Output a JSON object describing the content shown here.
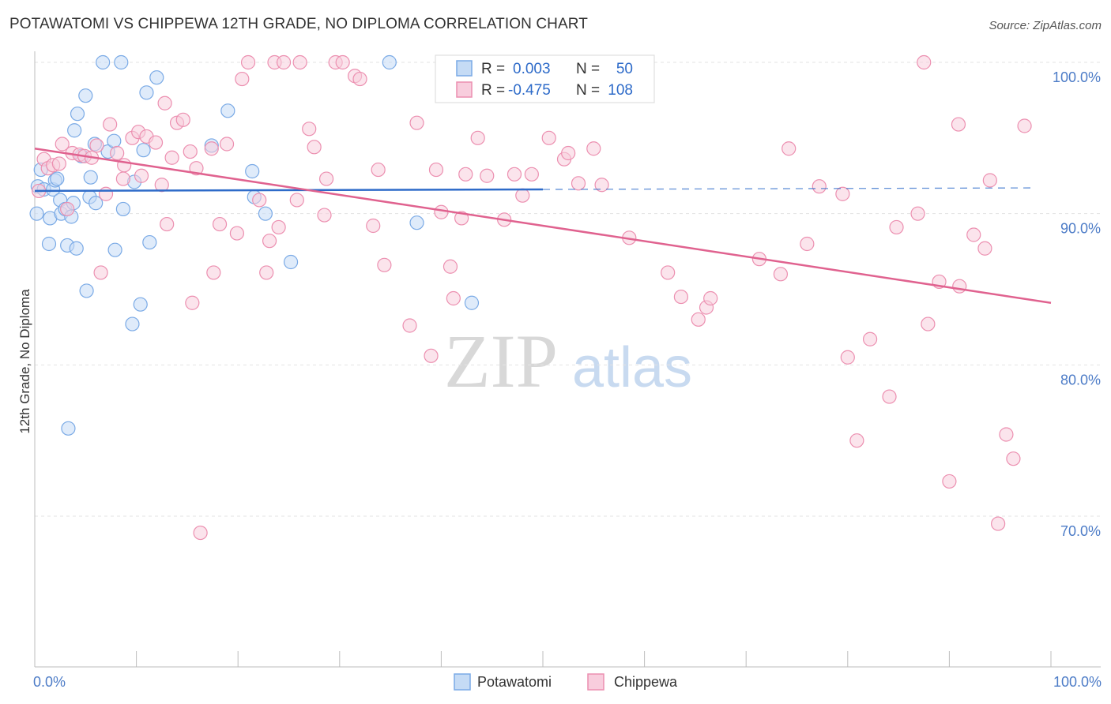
{
  "chart_data": {
    "type": "scatter",
    "title": "POTAWATOMI VS CHIPPEWA 12TH GRADE, NO DIPLOMA CORRELATION CHART",
    "source": "Source: ZipAtlas.com",
    "xlabel": "",
    "ylabel": "12th Grade, No Diploma",
    "xlim": [
      0,
      100
    ],
    "ylim": [
      60,
      101
    ],
    "y_ticks": [
      {
        "value": 100,
        "label": "100.0%"
      },
      {
        "value": 90,
        "label": "90.0%"
      },
      {
        "value": 80,
        "label": "80.0%"
      },
      {
        "value": 70,
        "label": "70.0%"
      }
    ],
    "x_tick_labels": {
      "left": "0.0%",
      "right": "100.0%"
    },
    "watermark": {
      "part1": "ZIP",
      "part2": "atlas"
    },
    "legend": {
      "rows": [
        {
          "r_label": "R =",
          "r_value": "0.003",
          "n_label": "N =",
          "n_value": "50"
        },
        {
          "r_label": "R =",
          "r_value": "-0.475",
          "n_label": "N =",
          "n_value": "108"
        }
      ]
    },
    "series": [
      {
        "name": "Potawatomi",
        "color": "#7aaae6",
        "fill": "#c5dbf5",
        "trend": {
          "x0": 0,
          "y0": 91.5,
          "x1": 50,
          "y1": 91.6,
          "dash_to": 98,
          "dash_y": 91.7,
          "color": "#2e6bc9"
        },
        "points": [
          [
            0.2,
            90.0
          ],
          [
            0.3,
            91.8
          ],
          [
            0.6,
            92.9
          ],
          [
            0.9,
            91.6
          ],
          [
            1.4,
            88.0
          ],
          [
            1.5,
            89.7
          ],
          [
            1.8,
            91.6
          ],
          [
            2.0,
            92.2
          ],
          [
            2.2,
            92.3
          ],
          [
            2.5,
            90.9
          ],
          [
            2.6,
            90.0
          ],
          [
            3.0,
            90.3
          ],
          [
            3.2,
            87.9
          ],
          [
            3.3,
            75.8
          ],
          [
            3.6,
            89.8
          ],
          [
            3.8,
            90.7
          ],
          [
            3.9,
            95.5
          ],
          [
            4.1,
            87.7
          ],
          [
            4.2,
            96.6
          ],
          [
            4.6,
            93.8
          ],
          [
            5.0,
            97.8
          ],
          [
            5.1,
            84.9
          ],
          [
            5.4,
            91.1
          ],
          [
            5.5,
            92.4
          ],
          [
            5.9,
            94.6
          ],
          [
            6.0,
            90.7
          ],
          [
            6.7,
            100.0
          ],
          [
            7.2,
            94.1
          ],
          [
            7.8,
            94.8
          ],
          [
            7.9,
            87.6
          ],
          [
            8.5,
            100.0
          ],
          [
            8.7,
            90.3
          ],
          [
            9.6,
            82.7
          ],
          [
            9.8,
            92.1
          ],
          [
            10.4,
            84.0
          ],
          [
            10.7,
            94.2
          ],
          [
            11.0,
            98.0
          ],
          [
            11.3,
            88.1
          ],
          [
            12.0,
            99.0
          ],
          [
            17.4,
            94.5
          ],
          [
            19.0,
            96.8
          ],
          [
            21.4,
            92.8
          ],
          [
            21.6,
            91.1
          ],
          [
            22.7,
            90.0
          ],
          [
            25.2,
            86.8
          ],
          [
            34.9,
            100.0
          ],
          [
            37.6,
            89.4
          ],
          [
            43.0,
            84.1
          ]
        ]
      },
      {
        "name": "Chippewa",
        "color": "#ec8fb0",
        "fill": "#f8cddd",
        "trend": {
          "x0": 0,
          "y0": 94.3,
          "x1": 100,
          "y1": 84.1,
          "color": "#e0628f"
        },
        "points": [
          [
            0.4,
            91.5
          ],
          [
            0.9,
            93.6
          ],
          [
            1.3,
            93.0
          ],
          [
            1.8,
            93.2
          ],
          [
            2.4,
            93.3
          ],
          [
            2.7,
            94.6
          ],
          [
            3.2,
            90.3
          ],
          [
            3.7,
            94.0
          ],
          [
            4.4,
            93.9
          ],
          [
            4.9,
            93.8
          ],
          [
            5.6,
            93.7
          ],
          [
            6.1,
            94.5
          ],
          [
            6.5,
            86.1
          ],
          [
            7.0,
            91.3
          ],
          [
            7.4,
            95.9
          ],
          [
            8.1,
            94.0
          ],
          [
            8.7,
            92.3
          ],
          [
            8.8,
            93.2
          ],
          [
            9.6,
            95.0
          ],
          [
            10.2,
            95.4
          ],
          [
            10.5,
            92.5
          ],
          [
            11.0,
            95.1
          ],
          [
            11.9,
            94.7
          ],
          [
            12.5,
            91.9
          ],
          [
            12.8,
            97.3
          ],
          [
            13.0,
            89.3
          ],
          [
            13.5,
            93.7
          ],
          [
            14.0,
            96.0
          ],
          [
            14.6,
            96.2
          ],
          [
            15.3,
            94.1
          ],
          [
            15.5,
            84.1
          ],
          [
            15.9,
            93.0
          ],
          [
            16.3,
            68.9
          ],
          [
            17.4,
            94.3
          ],
          [
            17.6,
            86.1
          ],
          [
            18.2,
            89.3
          ],
          [
            18.9,
            94.6
          ],
          [
            19.9,
            88.7
          ],
          [
            20.4,
            98.9
          ],
          [
            21.0,
            100.0
          ],
          [
            22.1,
            90.9
          ],
          [
            22.8,
            86.1
          ],
          [
            23.1,
            88.2
          ],
          [
            23.6,
            100.0
          ],
          [
            24.0,
            89.1
          ],
          [
            24.5,
            100.0
          ],
          [
            25.8,
            90.9
          ],
          [
            26.1,
            100.0
          ],
          [
            27.0,
            95.6
          ],
          [
            27.5,
            94.4
          ],
          [
            28.5,
            89.9
          ],
          [
            28.7,
            92.3
          ],
          [
            29.6,
            100.0
          ],
          [
            30.3,
            100.0
          ],
          [
            31.5,
            99.1
          ],
          [
            32.0,
            98.9
          ],
          [
            33.3,
            89.2
          ],
          [
            33.8,
            92.9
          ],
          [
            34.4,
            86.6
          ],
          [
            36.9,
            82.6
          ],
          [
            37.6,
            96.0
          ],
          [
            39.0,
            80.6
          ],
          [
            39.5,
            92.9
          ],
          [
            40.0,
            90.1
          ],
          [
            40.9,
            86.5
          ],
          [
            41.2,
            84.4
          ],
          [
            42.0,
            89.7
          ],
          [
            42.4,
            92.6
          ],
          [
            43.6,
            95.0
          ],
          [
            44.5,
            92.5
          ],
          [
            46.2,
            89.6
          ],
          [
            47.2,
            92.6
          ],
          [
            48.0,
            91.2
          ],
          [
            48.9,
            92.6
          ],
          [
            50.6,
            95.0
          ],
          [
            52.1,
            93.6
          ],
          [
            52.5,
            94.0
          ],
          [
            53.5,
            92.0
          ],
          [
            55.0,
            94.3
          ],
          [
            55.8,
            91.9
          ],
          [
            58.5,
            88.4
          ],
          [
            62.3,
            86.1
          ],
          [
            63.6,
            84.5
          ],
          [
            65.3,
            83.0
          ],
          [
            66.1,
            83.8
          ],
          [
            66.5,
            84.4
          ],
          [
            71.3,
            87.0
          ],
          [
            73.4,
            86.0
          ],
          [
            74.2,
            94.3
          ],
          [
            76.0,
            88.0
          ],
          [
            77.2,
            91.8
          ],
          [
            79.5,
            91.3
          ],
          [
            80.0,
            80.5
          ],
          [
            80.9,
            75.0
          ],
          [
            82.2,
            81.7
          ],
          [
            84.1,
            77.9
          ],
          [
            84.8,
            89.1
          ],
          [
            86.9,
            90.0
          ],
          [
            87.5,
            100.0
          ],
          [
            87.9,
            82.7
          ],
          [
            89.0,
            85.5
          ],
          [
            90.0,
            72.3
          ],
          [
            90.9,
            95.9
          ],
          [
            91.0,
            85.2
          ],
          [
            92.4,
            88.6
          ],
          [
            93.5,
            87.7
          ],
          [
            94.0,
            92.2
          ],
          [
            94.8,
            69.5
          ],
          [
            95.6,
            75.4
          ],
          [
            96.3,
            73.8
          ],
          [
            97.4,
            95.8
          ]
        ]
      }
    ]
  },
  "bottom_legend": [
    {
      "label": "Potawatomi"
    },
    {
      "label": "Chippewa"
    }
  ]
}
